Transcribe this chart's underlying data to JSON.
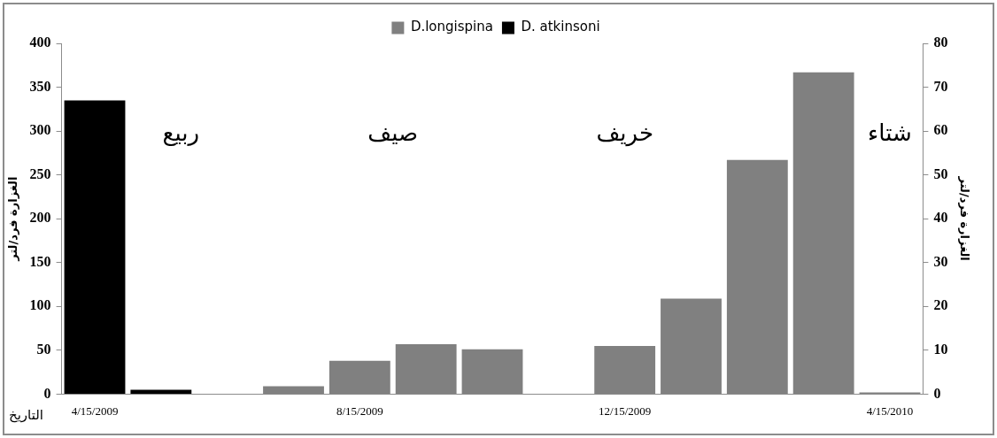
{
  "chart_data": {
    "type": "bar",
    "categories": [
      "4/15/2009",
      null,
      null,
      null,
      "8/15/2009",
      null,
      null,
      null,
      "12/15/2009",
      null,
      null,
      null,
      "4/15/2010"
    ],
    "series": [
      {
        "name": "D.longispina",
        "color": "#808080",
        "values": [
          null,
          null,
          null,
          9,
          38,
          57,
          51,
          null,
          55,
          109,
          267,
          367,
          2
        ]
      },
      {
        "name": "D. atkinsoni",
        "color": "#000000",
        "values": [
          335,
          5,
          null,
          null,
          null,
          null,
          null,
          null,
          null,
          null,
          null,
          null,
          null
        ]
      }
    ],
    "ylim": [
      0,
      400
    ],
    "yticks": [
      0,
      50,
      100,
      150,
      200,
      250,
      300,
      350,
      400
    ],
    "y2lim": [
      0,
      80
    ],
    "y2ticks": [
      0,
      10,
      20,
      30,
      40,
      50,
      60,
      70,
      80
    ],
    "ylabel": "الغزارة فرد/لتر",
    "y2label": "الغزارة فرد/لتر",
    "xlabel": "التاريخ",
    "annotations": [
      "ربيع",
      "صيف",
      "خريف",
      "شتاء"
    ],
    "legend": "top",
    "grid": false
  }
}
